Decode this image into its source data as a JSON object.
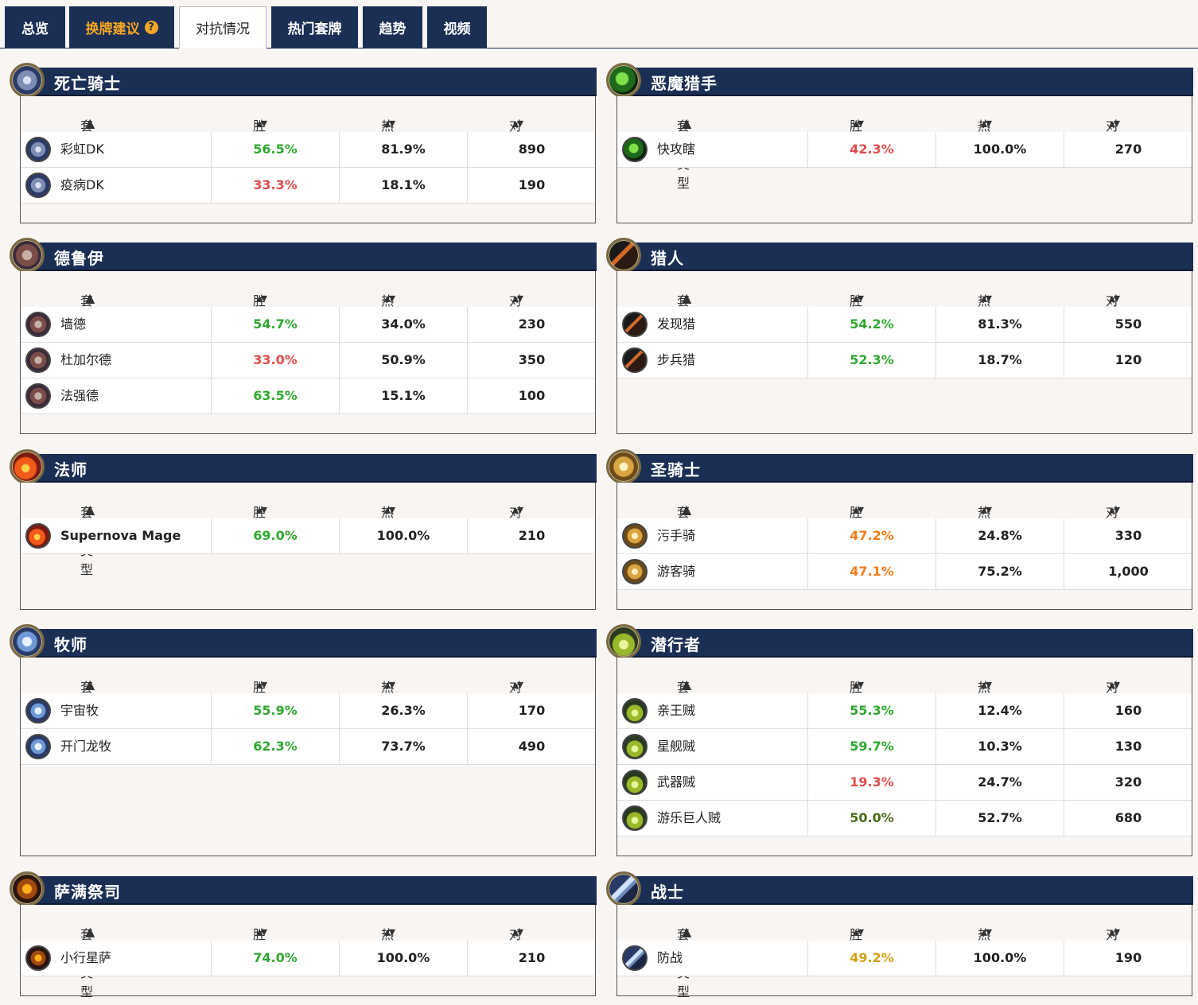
{
  "tabs": [
    {
      "label": "总览"
    },
    {
      "label": "换牌建议",
      "help": "?"
    },
    {
      "label": "对抗情况"
    },
    {
      "label": "热门套牌"
    },
    {
      "label": "趋势"
    },
    {
      "label": "视频"
    }
  ],
  "columns": {
    "deck_type": "套牌类型",
    "win_rate": "胜率",
    "popularity": "热度",
    "games": "对局",
    "sort_up": "▲",
    "sort_both": "▴▾"
  },
  "panels": [
    {
      "class": "死亡骑士",
      "icon": "death-knight-icon",
      "decks": [
        {
          "name": "彩虹DK",
          "win": "56.5%",
          "pop": "81.9%",
          "games": "890",
          "color": "green"
        },
        {
          "name": "疫病DK",
          "win": "33.3%",
          "pop": "18.1%",
          "games": "190",
          "color": "red"
        }
      ]
    },
    {
      "class": "恶魔猎手",
      "icon": "demon-hunter-icon",
      "decks": [
        {
          "name": "快攻瞎",
          "win": "42.3%",
          "pop": "100.0%",
          "games": "270",
          "color": "red"
        }
      ]
    },
    {
      "class": "德鲁伊",
      "icon": "druid-icon",
      "decks": [
        {
          "name": "墙德",
          "win": "54.7%",
          "pop": "34.0%",
          "games": "230",
          "color": "green"
        },
        {
          "name": "杜加尔德",
          "win": "33.0%",
          "pop": "50.9%",
          "games": "350",
          "color": "red"
        },
        {
          "name": "法强德",
          "win": "63.5%",
          "pop": "15.1%",
          "games": "100",
          "color": "green"
        }
      ]
    },
    {
      "class": "猎人",
      "icon": "hunter-icon",
      "decks": [
        {
          "name": "发现猎",
          "win": "54.2%",
          "pop": "81.3%",
          "games": "550",
          "color": "green"
        },
        {
          "name": "步兵猎",
          "win": "52.3%",
          "pop": "18.7%",
          "games": "120",
          "color": "green"
        }
      ]
    },
    {
      "class": "法师",
      "icon": "mage-icon",
      "decks": [
        {
          "name": "Supernova Mage",
          "win": "69.0%",
          "pop": "100.0%",
          "games": "210",
          "color": "green"
        }
      ]
    },
    {
      "class": "圣骑士",
      "icon": "paladin-icon",
      "decks": [
        {
          "name": "污手骑",
          "win": "47.2%",
          "pop": "24.8%",
          "games": "330",
          "color": "orange"
        },
        {
          "name": "游客骑",
          "win": "47.1%",
          "pop": "75.2%",
          "games": "1,000",
          "color": "orange"
        }
      ]
    },
    {
      "class": "牧师",
      "icon": "priest-icon",
      "decks": [
        {
          "name": "宇宙牧",
          "win": "55.9%",
          "pop": "26.3%",
          "games": "170",
          "color": "green"
        },
        {
          "name": "开门龙牧",
          "win": "62.3%",
          "pop": "73.7%",
          "games": "490",
          "color": "green"
        }
      ]
    },
    {
      "class": "潜行者",
      "icon": "rogue-icon",
      "decks": [
        {
          "name": "亲王贼",
          "win": "55.3%",
          "pop": "12.4%",
          "games": "160",
          "color": "green"
        },
        {
          "name": "星舰贼",
          "win": "59.7%",
          "pop": "10.3%",
          "games": "130",
          "color": "green"
        },
        {
          "name": "武器贼",
          "win": "19.3%",
          "pop": "24.7%",
          "games": "320",
          "color": "red"
        },
        {
          "name": "游乐巨人贼",
          "win": "50.0%",
          "pop": "52.7%",
          "games": "680",
          "color": "olive"
        }
      ]
    },
    {
      "class": "萨满祭司",
      "icon": "shaman-icon",
      "decks": [
        {
          "name": "小行星萨",
          "win": "74.0%",
          "pop": "100.0%",
          "games": "210",
          "color": "green"
        }
      ]
    },
    {
      "class": "战士",
      "icon": "warrior-icon",
      "decks": [
        {
          "name": "防战",
          "win": "49.2%",
          "pop": "100.0%",
          "games": "190",
          "color": "amber"
        }
      ]
    }
  ]
}
